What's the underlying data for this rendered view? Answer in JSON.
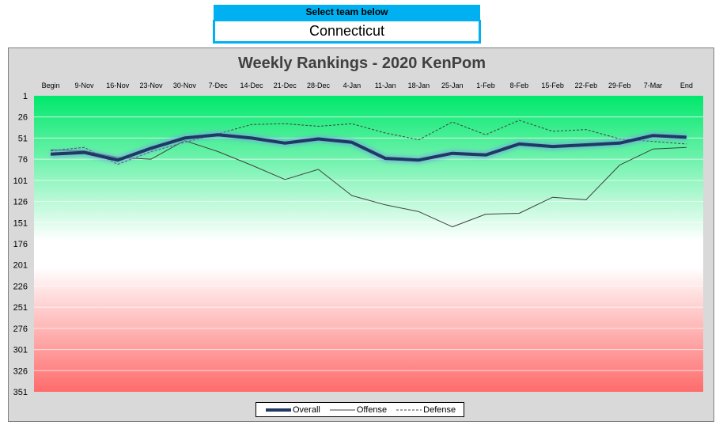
{
  "selector": {
    "header": "Select team below",
    "value": "Connecticut"
  },
  "chart_data": {
    "type": "line",
    "title": "Weekly Rankings - 2020 KenPom",
    "categories": [
      "Begin",
      "9-Nov",
      "16-Nov",
      "23-Nov",
      "30-Nov",
      "7-Dec",
      "14-Dec",
      "21-Dec",
      "28-Dec",
      "4-Jan",
      "11-Jan",
      "18-Jan",
      "25-Jan",
      "1-Feb",
      "8-Feb",
      "15-Feb",
      "22-Feb",
      "29-Feb",
      "7-Mar",
      "End"
    ],
    "yticks": [
      1,
      26,
      51,
      76,
      101,
      126,
      151,
      176,
      201,
      226,
      251,
      276,
      301,
      326,
      351
    ],
    "ylim": [
      1,
      351
    ],
    "y_inverted": true,
    "grid": true,
    "legend_position": "bottom",
    "series": [
      {
        "name": "Overall",
        "color": "#203864",
        "style": "thick",
        "values": [
          70,
          68,
          77,
          63,
          51,
          47,
          51,
          57,
          52,
          56,
          75,
          77,
          69,
          71,
          58,
          61,
          59,
          57,
          48,
          50
        ]
      },
      {
        "name": "Offense",
        "color": "#404040",
        "style": "thin",
        "values": [
          65,
          66,
          74,
          76,
          54,
          67,
          83,
          100,
          88,
          119,
          130,
          138,
          156,
          141,
          140,
          121,
          124,
          83,
          64,
          62
        ]
      },
      {
        "name": "Defense",
        "color": "#404040",
        "style": "dashed",
        "values": [
          66,
          62,
          82,
          67,
          56,
          46,
          35,
          34,
          37,
          34,
          45,
          53,
          32,
          47,
          30,
          43,
          41,
          52,
          55,
          58
        ]
      }
    ],
    "background_gradient": {
      "top": "#00e86c",
      "middle": "#ffffff",
      "bottom": "#ff6b6b"
    }
  }
}
